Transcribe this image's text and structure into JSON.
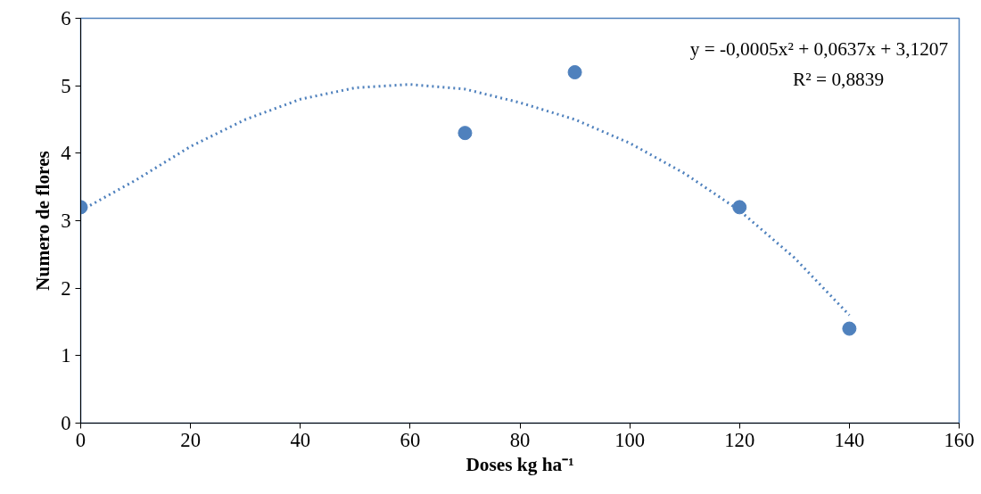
{
  "chart_data": {
    "type": "scatter",
    "xlabel": "Doses kg ha⁻¹",
    "ylabel": "Numero de flores",
    "xlim": [
      0,
      160
    ],
    "xticks": [
      0,
      20,
      40,
      60,
      80,
      100,
      120,
      140,
      160
    ],
    "ylim": [
      0,
      6
    ],
    "yticks": [
      0,
      1,
      2,
      3,
      4,
      5,
      6
    ],
    "grid": false,
    "marker": "circle",
    "series": [
      {
        "color": "#4f81bd",
        "x": [
          0,
          70,
          90,
          120,
          140
        ],
        "values": [
          3.2,
          4.3,
          5.2,
          3.2,
          1.4
        ]
      },
      {
        "type": "line",
        "marker": "none",
        "line_style": "dotted",
        "color": "#4f81bd",
        "x": [
          0,
          10,
          20,
          30,
          40,
          50,
          60,
          70,
          80,
          90,
          100,
          110,
          120,
          130,
          140
        ],
        "values": [
          3.15,
          3.6,
          4.1,
          4.5,
          4.8,
          4.97,
          5.02,
          4.95,
          4.75,
          4.5,
          4.15,
          3.7,
          3.15,
          2.45,
          1.6
        ]
      }
    ],
    "annotations": [
      "y = -0,0005x² + 0,0637x + 3,1207",
      "R² = 0,8839"
    ]
  }
}
